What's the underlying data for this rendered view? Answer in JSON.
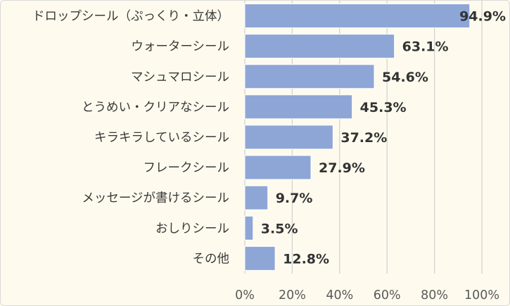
{
  "chart_data": {
    "type": "bar",
    "orientation": "horizontal",
    "categories": [
      "ドロップシール（ぷっくり・立体）",
      "ウォーターシール",
      "マシュマロシール",
      "とうめい・クリアなシール",
      "キラキラしているシール",
      "フレークシール",
      "メッセージが書けるシール",
      "おしりシール",
      "その他"
    ],
    "values": [
      94.9,
      63.1,
      54.6,
      45.3,
      37.2,
      27.9,
      9.7,
      3.5,
      12.8
    ],
    "value_labels": [
      "94.9%",
      "63.1%",
      "54.6%",
      "45.3%",
      "37.2%",
      "27.9%",
      "9.7%",
      "3.5%",
      "12.8%"
    ],
    "xlim": [
      0,
      100
    ],
    "xticks": [
      0,
      20,
      40,
      60,
      80,
      100
    ],
    "xtick_labels": [
      "0%",
      "20%",
      "40%",
      "60%",
      "80%",
      "100%"
    ],
    "grid": "vertical",
    "legend": "none",
    "title": "",
    "xlabel": "",
    "ylabel": "",
    "colors": {
      "bar": "#8ea6d6",
      "bar_stroke": "#ffffff",
      "grid": "#d0d0d0",
      "background": "#fefbee"
    }
  }
}
